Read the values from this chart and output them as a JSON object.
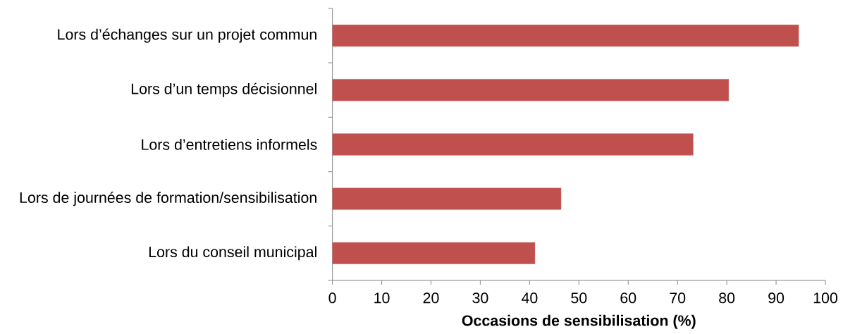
{
  "chart_data": {
    "type": "bar",
    "orientation": "horizontal",
    "xlabel": "Occasions de sensibilisation (%)",
    "categories": [
      "Lors d’échanges sur un projet commun",
      "Lors d’un temps décisionnel",
      "Lors d’entretiens informels",
      "Lors de journées de formation/sensibilisation",
      "Lors du conseil municipal"
    ],
    "values": [
      94.6,
      80.4,
      73.2,
      46.4,
      41.1
    ],
    "color": "#c0504d",
    "xlim": [
      0,
      100
    ],
    "xticks": [
      0,
      10,
      20,
      30,
      40,
      50,
      60,
      70,
      80,
      90,
      100
    ],
    "grid": false
  }
}
